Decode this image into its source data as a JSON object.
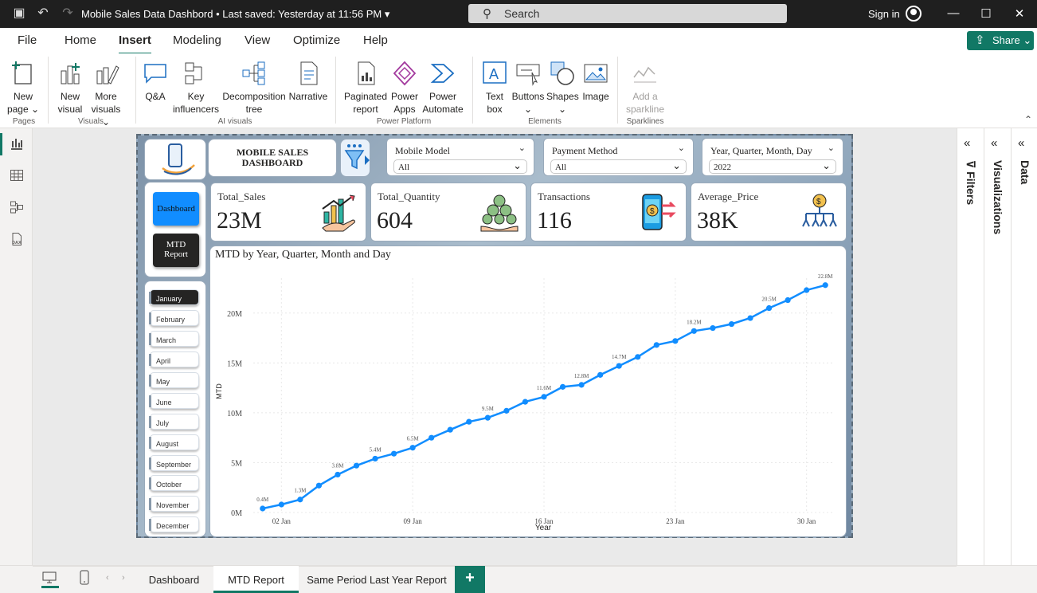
{
  "window": {
    "title": "Mobile Sales Data Dashbord • Last saved: Yesterday at 11:56 PM",
    "search_placeholder": "Search",
    "sign_in": "Sign in"
  },
  "menu": [
    "File",
    "Home",
    "Insert",
    "Modeling",
    "View",
    "Optimize",
    "Help"
  ],
  "active_menu": "Insert",
  "share_label": "Share",
  "ribbon": {
    "buttons": [
      {
        "id": "new-page",
        "l1": "New",
        "l2": "page ⌄",
        "icon": "new-page-icon"
      },
      {
        "id": "new-visual",
        "l1": "New",
        "l2": "visual",
        "icon": "bar-chart-icon"
      },
      {
        "id": "more-visuals",
        "l1": "More",
        "l2": "visuals ⌄",
        "icon": "pencil-chart-icon"
      },
      {
        "id": "qa",
        "l1": "Q&A",
        "l2": "",
        "icon": "speech-bubble-icon"
      },
      {
        "id": "key-influencers",
        "l1": "Key",
        "l2": "influencers",
        "icon": "key-influencers-icon"
      },
      {
        "id": "decomposition-tree",
        "l1": "Decomposition",
        "l2": "tree",
        "icon": "tree-icon"
      },
      {
        "id": "narrative",
        "l1": "Narrative",
        "l2": "",
        "icon": "narrative-icon"
      },
      {
        "id": "paginated-report",
        "l1": "Paginated",
        "l2": "report",
        "icon": "paginated-report-icon"
      },
      {
        "id": "power-apps",
        "l1": "Power",
        "l2": "Apps",
        "icon": "power-apps-icon"
      },
      {
        "id": "power-automate",
        "l1": "Power",
        "l2": "Automate",
        "icon": "power-automate-icon"
      },
      {
        "id": "text-box",
        "l1": "Text",
        "l2": "box",
        "icon": "text-box-icon"
      },
      {
        "id": "buttons",
        "l1": "Buttons",
        "l2": "⌄",
        "icon": "buttons-icon"
      },
      {
        "id": "shapes",
        "l1": "Shapes",
        "l2": "⌄",
        "icon": "shapes-icon"
      },
      {
        "id": "image",
        "l1": "Image",
        "l2": "",
        "icon": "image-icon"
      },
      {
        "id": "add-sparkline",
        "l1": "Add a",
        "l2": "sparkline",
        "icon": "sparkline-icon"
      }
    ],
    "groups": [
      "Pages",
      "Visuals",
      "AI visuals",
      "Power Platform",
      "Elements",
      "Sparklines"
    ]
  },
  "report": {
    "title": "MOBILE SALES DASHBOARD",
    "slicers": [
      {
        "label": "Mobile Model",
        "value": "All"
      },
      {
        "label": "Payment Method",
        "value": "All"
      },
      {
        "label": "Year, Quarter, Month, Day",
        "value": "2022"
      }
    ],
    "nav_buttons": [
      "Dashboard",
      "MTD Report"
    ],
    "months": [
      "January",
      "February",
      "March",
      "April",
      "May",
      "June",
      "July",
      "August",
      "September",
      "October",
      "November",
      "December"
    ],
    "selected_month": "January",
    "kpis": [
      {
        "label": "Total_Sales",
        "value": "23M",
        "icon": "sales-growth-icon"
      },
      {
        "label": "Total_Quantity",
        "value": "604",
        "icon": "coins-hand-icon"
      },
      {
        "label": "Transactions",
        "value": "116",
        "icon": "phone-payment-icon"
      },
      {
        "label": "Average_Price",
        "value": "38K",
        "icon": "coin-network-icon"
      }
    ]
  },
  "chart_data": {
    "type": "line",
    "title": "MTD by Year, Quarter, Month and Day",
    "xlabel": "Year",
    "ylabel": "MTD",
    "x": [
      1,
      2,
      3,
      4,
      5,
      6,
      7,
      8,
      9,
      10,
      11,
      12,
      13,
      14,
      15,
      16,
      17,
      18,
      19,
      20,
      21,
      22,
      23,
      24,
      25,
      26,
      27,
      28,
      29,
      30,
      31
    ],
    "x_tick_labels": [
      {
        "day": 2,
        "label": "02 Jan"
      },
      {
        "day": 9,
        "label": "09 Jan"
      },
      {
        "day": 16,
        "label": "16 Jan"
      },
      {
        "day": 23,
        "label": "23 Jan"
      },
      {
        "day": 30,
        "label": "30 Jan"
      }
    ],
    "values": [
      0.4,
      0.8,
      1.3,
      2.7,
      3.8,
      4.7,
      5.4,
      5.9,
      6.5,
      7.5,
      8.3,
      9.1,
      9.5,
      10.2,
      11.1,
      11.6,
      12.6,
      12.8,
      13.8,
      14.7,
      15.6,
      16.8,
      17.2,
      18.2,
      18.5,
      18.9,
      19.5,
      20.5,
      21.3,
      22.3,
      22.8
    ],
    "data_labels": {
      "1": "0.4M",
      "3": "1.3M",
      "5": "3.8M",
      "7": "5.4M",
      "9": "6.5M",
      "13": "9.5M",
      "16": "11.6M",
      "18": "12.8M",
      "20": "14.7M",
      "24": "18.2M",
      "28": "20.5M",
      "31": "22.8M"
    },
    "y_ticks": [
      "0M",
      "5M",
      "10M",
      "15M",
      "20M"
    ],
    "ylim": [
      0,
      23.5
    ],
    "color": "#118DFF",
    "grid": true
  },
  "right_panes": [
    "Filters",
    "Visualizations",
    "Data"
  ],
  "tabs": [
    "Dashboard",
    "MTD Report",
    "Same Period Last Year Report"
  ],
  "active_tab": "MTD Report"
}
